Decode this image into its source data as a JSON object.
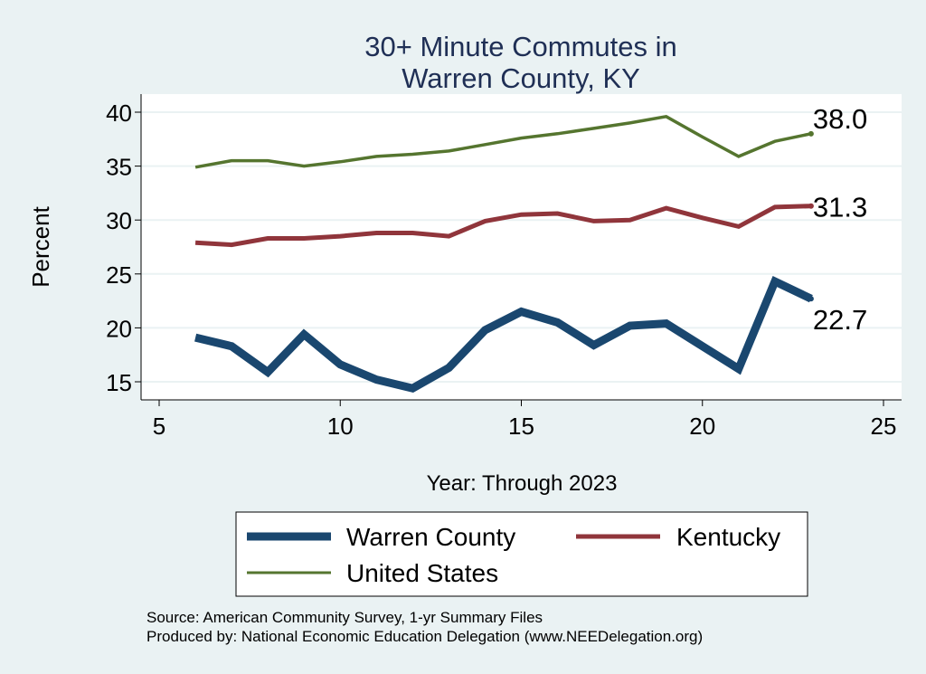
{
  "chart_data": {
    "type": "line",
    "title": [
      "30+ Minute Commutes in",
      "Warren County, KY"
    ],
    "xlabel": "Year: Through 2023",
    "ylabel": "Percent",
    "xlim": [
      5,
      25
    ],
    "ylim": [
      13,
      41
    ],
    "xticks": [
      5,
      10,
      15,
      20,
      25
    ],
    "yticks": [
      15,
      20,
      25,
      30,
      35,
      40
    ],
    "grid": true,
    "x": [
      6,
      7,
      8,
      9,
      10,
      11,
      12,
      13,
      14,
      15,
      16,
      17,
      18,
      19,
      20,
      21,
      22,
      23
    ],
    "series": [
      {
        "name": "Warren County",
        "color": "#1A476F",
        "values": [
          19.1,
          18.3,
          15.9,
          19.4,
          16.6,
          15.2,
          14.4,
          16.3,
          19.8,
          21.5,
          20.5,
          18.4,
          20.2,
          20.4,
          18.3,
          16.2,
          24.3,
          22.7
        ],
        "end_label": "22.7"
      },
      {
        "name": "Kentucky",
        "color": "#90353B",
        "values": [
          27.9,
          27.7,
          28.3,
          28.3,
          28.5,
          28.8,
          28.8,
          28.5,
          29.9,
          30.5,
          30.6,
          29.9,
          30.0,
          31.1,
          30.2,
          29.4,
          31.2,
          31.3
        ],
        "end_label": "31.3"
      },
      {
        "name": "United States",
        "color": "#55752F",
        "values": [
          34.9,
          35.5,
          35.5,
          35.0,
          35.4,
          35.9,
          36.1,
          36.4,
          37.0,
          37.6,
          38.0,
          38.5,
          39.0,
          39.6,
          37.7,
          35.9,
          37.3,
          38.0
        ],
        "end_label": "38.0"
      }
    ],
    "legend": {
      "placement": "bottom",
      "entries": [
        "Warren County",
        "Kentucky",
        "United States"
      ]
    },
    "notes": [
      "Source: American Community Survey, 1-yr Summary Files",
      "Produced by: National Economic Education Delegation (www.NEEDelegation.org)"
    ]
  }
}
